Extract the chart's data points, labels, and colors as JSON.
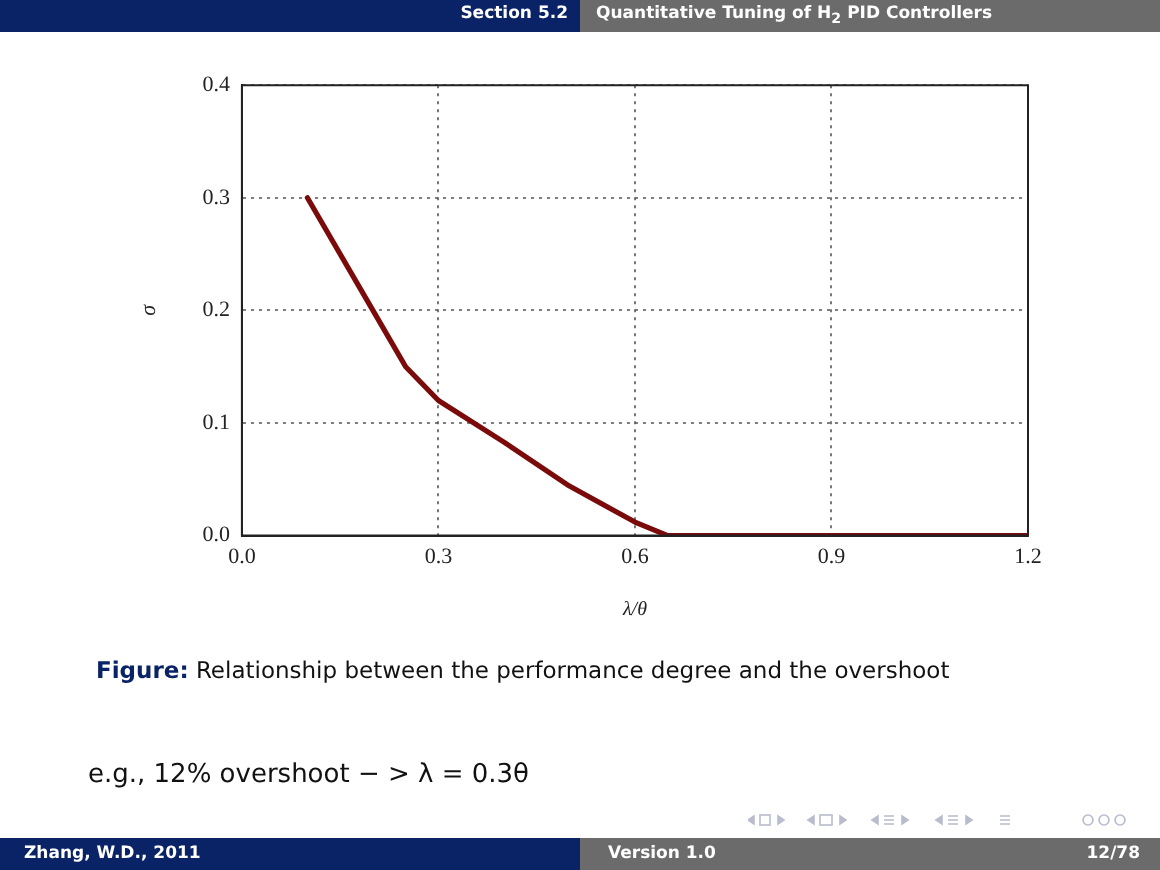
{
  "chart_data": {
    "type": "line",
    "title": "Quantitative Tuning of H$_{2}$ PID Controllers",
    "xlabel": "λ/θ",
    "ylabel": "σ",
    "x": [
      0.1,
      0.2,
      0.25,
      0.3,
      0.4,
      0.5,
      0.6,
      0.65,
      1.2
    ],
    "series": [
      {
        "color": "#7b0a0a",
        "values": [
          0.3,
          0.2,
          0.15,
          0.12,
          0.083,
          0.044,
          0.012,
          0,
          0
        ]
      }
    ],
    "xlim": [
      0,
      1.2
    ],
    "xticks": [
      {
        "value": 0,
        "label": "0.0"
      },
      0.3,
      0.6,
      0.9,
      1.2
    ],
    "ylim": [
      0,
      0.4
    ],
    "yticks": [
      {
        "value": 0,
        "label": "0.0"
      },
      0.1,
      0.2,
      0.3,
      0.4
    ],
    "grid": true,
    "marker": "none",
    "line_style": "solid",
    "legend": false,
    "annotations": [
      "Section 5.2",
      "Figure: Relationship between the performance degree and the overshoot",
      "e.g., 12% overshoot − > λ = 0.3θ",
      "Zhang, W.D., 2011",
      "Version 1.0",
      "12/78"
    ]
  }
}
